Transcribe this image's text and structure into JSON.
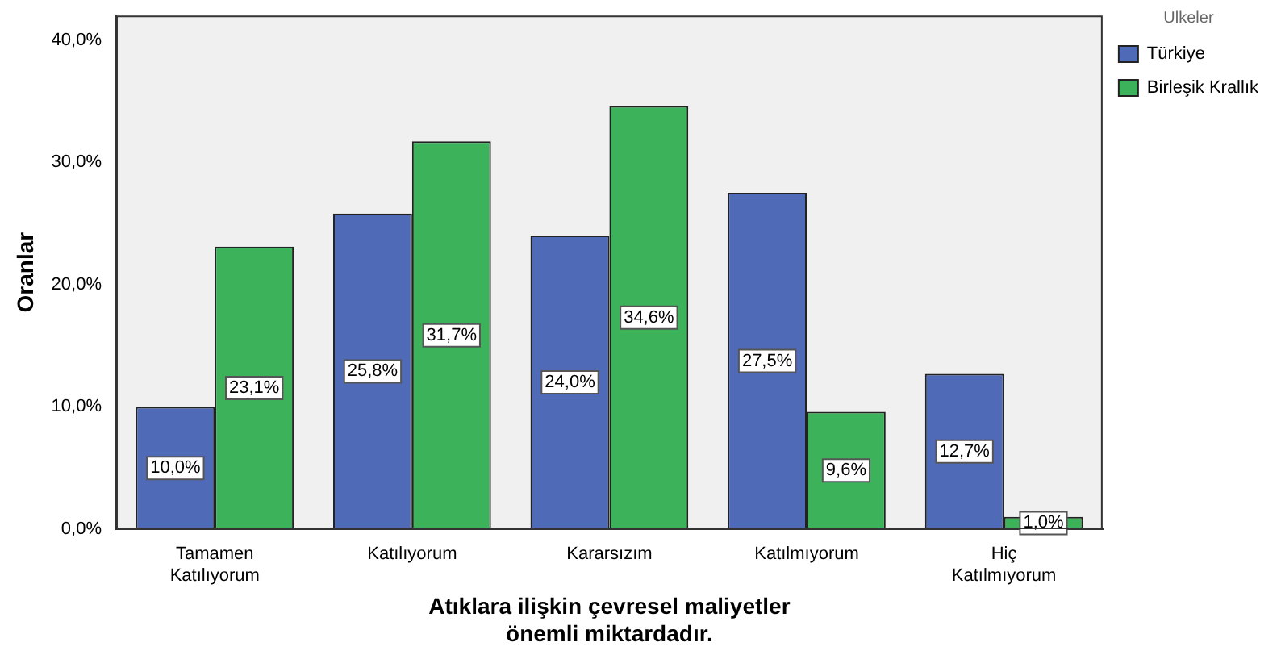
{
  "chart_data": {
    "type": "bar",
    "xlabel": "Atıklara ilişkin çevresel maliyetler\nönemli miktardadır.",
    "ylabel": "Oranlar",
    "legend_title": "Ülkeler",
    "categories": [
      "Tamamen\nKatılıyorum",
      "Katılıyorum",
      "Kararsızım",
      "Katılmıyorum",
      "Hiç\nKatılmıyorum"
    ],
    "series": [
      {
        "name": "Türkiye",
        "color": "#4f6bb8",
        "values": [
          10.0,
          25.8,
          24.0,
          27.5,
          12.7
        ],
        "value_labels": [
          "10,0%",
          "25,8%",
          "24,0%",
          "27,5%",
          "12,7%"
        ]
      },
      {
        "name": "Birleşik Krallık",
        "color": "#3cb35a",
        "values": [
          23.1,
          31.7,
          34.6,
          9.6,
          1.0
        ],
        "value_labels": [
          "23,1%",
          "31,7%",
          "34,6%",
          "9,6%",
          "1,0%"
        ]
      }
    ],
    "ylim": [
      0,
      42
    ],
    "yticks": [
      {
        "value": 0,
        "label": "0,0%"
      },
      {
        "value": 10,
        "label": "10,0%"
      },
      {
        "value": 20,
        "label": "20,0%"
      },
      {
        "value": 30,
        "label": "30,0%"
      },
      {
        "value": 40,
        "label": "40,0%"
      }
    ],
    "grid": false,
    "legend": "top right"
  }
}
